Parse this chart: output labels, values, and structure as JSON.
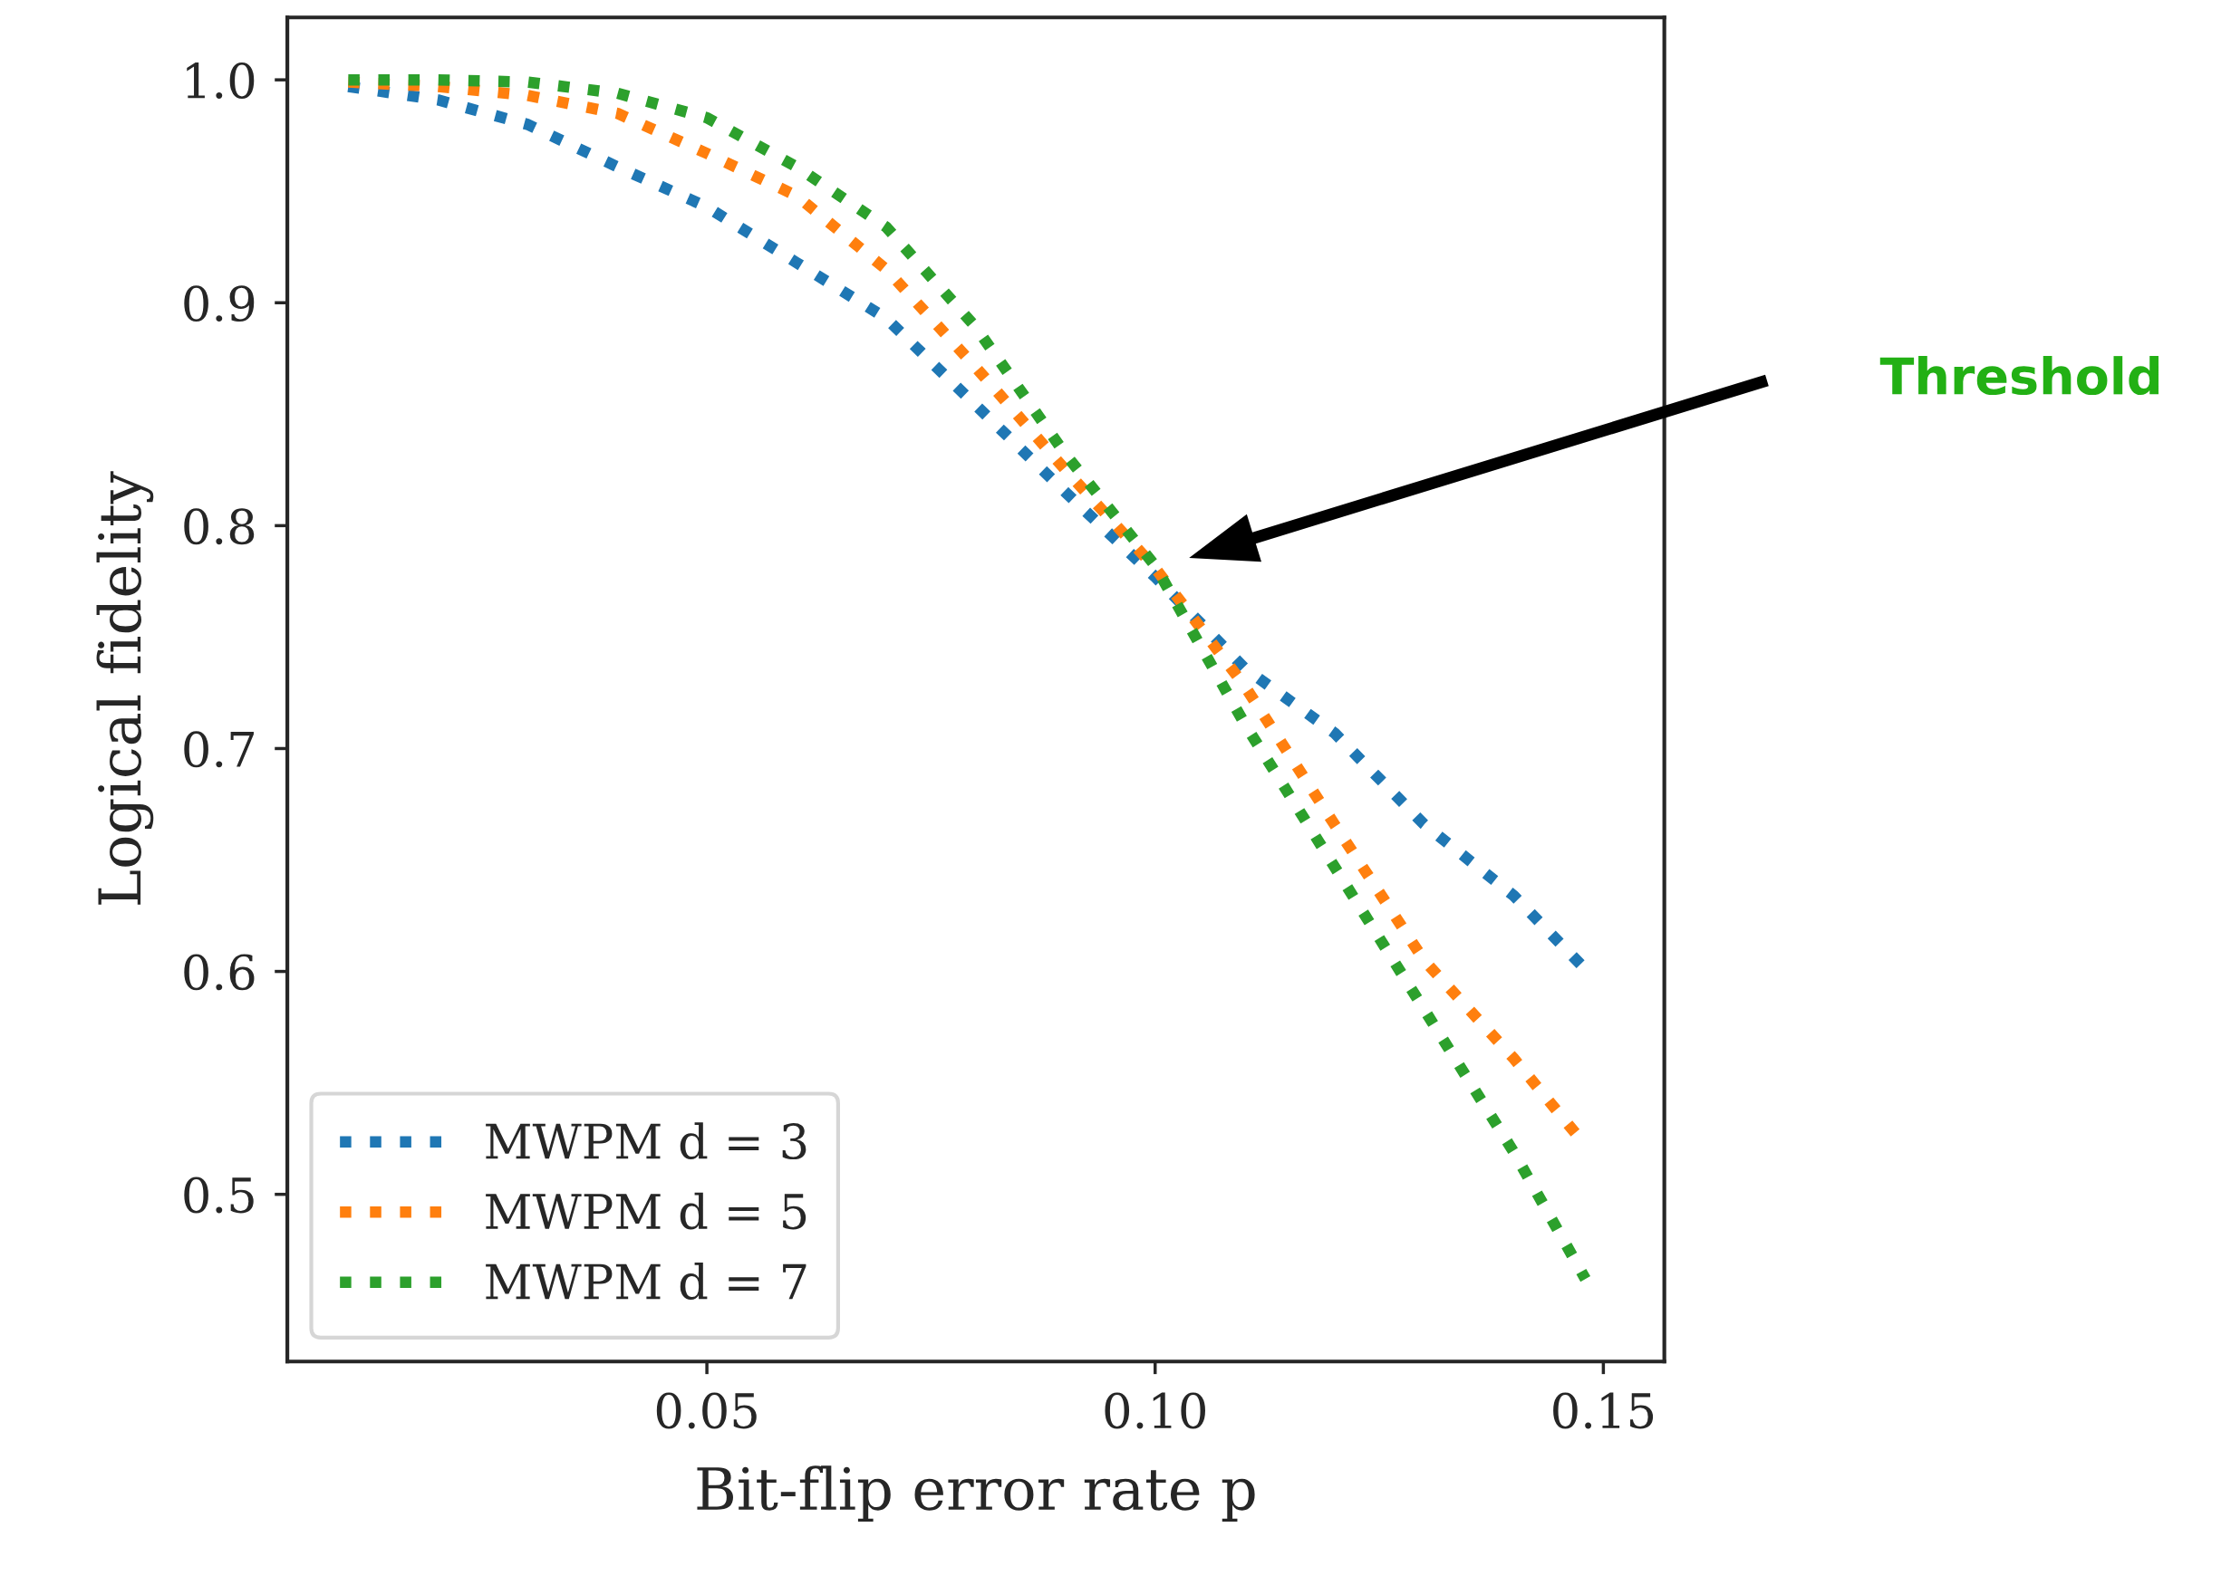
{
  "chart_data": {
    "type": "line",
    "xlabel": "Bit-flip error rate p",
    "ylabel": "Logical fidelity",
    "x": [
      0.01,
      0.02,
      0.03,
      0.04,
      0.05,
      0.06,
      0.07,
      0.08,
      0.09,
      0.1,
      0.11,
      0.12,
      0.13,
      0.14,
      0.148
    ],
    "series": [
      {
        "name": "MWPM d = 3",
        "color": "#1f77b4",
        "values": [
          0.997,
          0.991,
          0.98,
          0.961,
          0.943,
          0.918,
          0.893,
          0.854,
          0.815,
          0.777,
          0.736,
          0.707,
          0.666,
          0.634,
          0.601
        ]
      },
      {
        "name": "MWPM d = 5",
        "color": "#ff7f0e",
        "values": [
          0.999,
          0.997,
          0.993,
          0.985,
          0.967,
          0.948,
          0.915,
          0.871,
          0.825,
          0.781,
          0.728,
          0.666,
          0.605,
          0.561,
          0.522
        ]
      },
      {
        "name": "MWPM d = 7",
        "color": "#2ca02c",
        "values": [
          1.0,
          1.0,
          0.999,
          0.994,
          0.983,
          0.961,
          0.934,
          0.889,
          0.832,
          0.782,
          0.711,
          0.647,
          0.583,
          0.519,
          0.462
        ]
      }
    ],
    "xlim": [
      0.0032,
      0.1568
    ],
    "ylim": [
      0.425,
      1.028
    ],
    "xticks": [
      0.05,
      {
        "value": 0.1,
        "label": "0.10"
      },
      0.15
    ],
    "yticks": [
      0.5,
      0.6,
      0.7,
      0.8,
      0.9,
      {
        "value": 1.0,
        "label": "1.0"
      }
    ],
    "annotations": [
      "Threshold"
    ],
    "line_style": "dotted",
    "marker": "none",
    "legend": "bottom left",
    "grid": false
  }
}
